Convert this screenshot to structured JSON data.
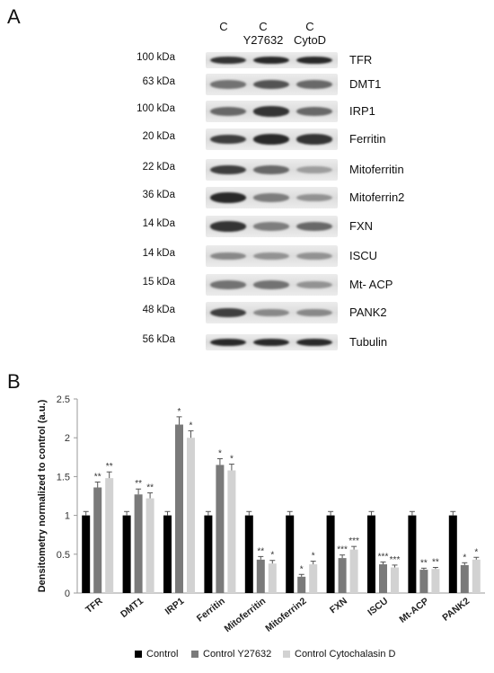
{
  "panel_a": {
    "letter": "A",
    "lane_headers": [
      {
        "line1": "C",
        "line2": ""
      },
      {
        "line1": "C",
        "line2": "Y27632"
      },
      {
        "line1": "C",
        "line2": "CytoD"
      }
    ],
    "rows": [
      {
        "kda": "100 kDa",
        "protein": "TFR"
      },
      {
        "kda": "63 kDa",
        "protein": "DMT1"
      },
      {
        "kda": "100 kDa",
        "protein": "IRP1"
      },
      {
        "kda": "20 kDa",
        "protein": "Ferritin"
      },
      {
        "kda": "22 kDa",
        "protein": "Mitoferritin"
      },
      {
        "kda": "36 kDa",
        "protein": "Mitoferrin2"
      },
      {
        "kda": "14 kDa",
        "protein": "FXN"
      },
      {
        "kda": "14 kDa",
        "protein": "ISCU"
      },
      {
        "kda": "15 kDa",
        "protein": "Mt- ACP"
      },
      {
        "kda": "48 kDa",
        "protein": "PANK2"
      },
      {
        "kda": "56 kDa",
        "protein": "Tubulin"
      }
    ]
  },
  "panel_b": {
    "letter": "B"
  },
  "chart_data": {
    "type": "bar",
    "ylabel": "Densitometry normalized to control (a.u.)",
    "xlabel": "",
    "ylim": [
      0,
      2.5
    ],
    "yticks": [
      "0",
      "0.5",
      "1",
      "1.5",
      "2",
      "2.5"
    ],
    "categories": [
      "TFR",
      "DMT1",
      "IRP1",
      "Ferritin",
      "Mitoferritin",
      "Mitoferrin2",
      "FXN",
      "ISCU",
      "Mt-ACP",
      "PANK2"
    ],
    "series": [
      {
        "name": "Control",
        "color": "#000000",
        "values": [
          1,
          1,
          1,
          1,
          1,
          1,
          1,
          1,
          1,
          1
        ],
        "errors": [
          0.05,
          0.05,
          0.05,
          0.05,
          0.05,
          0.05,
          0.05,
          0.05,
          0.05,
          0.05
        ],
        "stars": [
          "",
          "",
          "",
          "",
          "",
          "",
          "",
          "",
          "",
          ""
        ]
      },
      {
        "name": "Control Y27632",
        "color": "#7a7a7a",
        "values": [
          1.36,
          1.27,
          2.17,
          1.65,
          0.43,
          0.21,
          0.45,
          0.37,
          0.3,
          0.36
        ],
        "errors": [
          0.07,
          0.07,
          0.1,
          0.08,
          0.04,
          0.03,
          0.04,
          0.03,
          0.02,
          0.03
        ],
        "stars": [
          "**",
          "**",
          "*",
          "*",
          "**",
          "*",
          "***",
          "***",
          "**",
          "*"
        ]
      },
      {
        "name": "Control Cytochalasin D",
        "color": "#d2d2d2",
        "values": [
          1.48,
          1.22,
          2.0,
          1.58,
          0.38,
          0.37,
          0.56,
          0.33,
          0.31,
          0.43
        ],
        "errors": [
          0.08,
          0.07,
          0.09,
          0.08,
          0.04,
          0.04,
          0.04,
          0.03,
          0.02,
          0.03
        ],
        "stars": [
          "**",
          "**",
          "*",
          "*",
          "*",
          "*",
          "***",
          "***",
          "**",
          "*"
        ]
      }
    ]
  }
}
